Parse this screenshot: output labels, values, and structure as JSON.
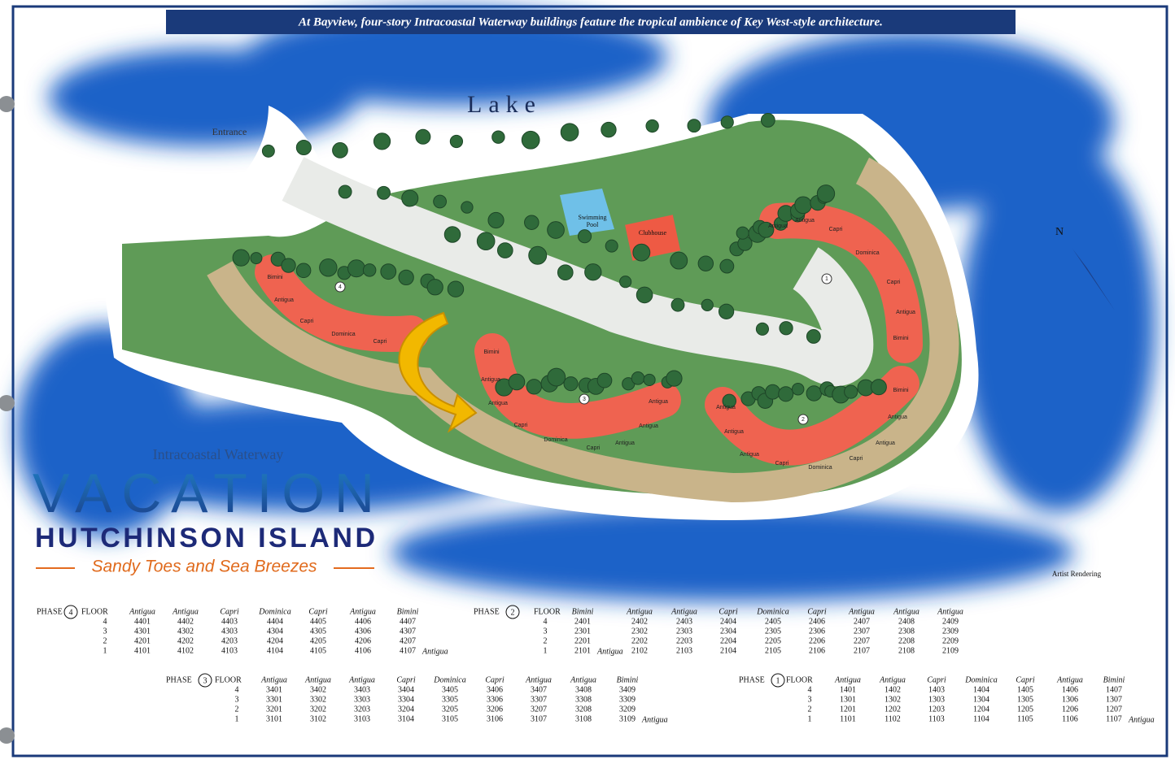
{
  "header": {
    "title": "At Bayview, four-story Intracoastal Waterway buildings feature the tropical ambience of Key West-style architecture."
  },
  "map": {
    "labels": [
      "Lake",
      "Entrance",
      "Swimming",
      "Pool",
      "Clubhouse",
      "N",
      "Artist Rendering"
    ],
    "buildings": [
      {
        "number": "4",
        "units": [
          "Bimini",
          "Antigua",
          "Capri",
          "Dominica",
          "Capri"
        ]
      },
      {
        "number": "3",
        "units": [
          "Bimini",
          "Antigua",
          "Antigua",
          "Capri",
          "Dominica",
          "Capri",
          "Antigua",
          "Antigua",
          "Antigua"
        ]
      },
      {
        "number": "2",
        "units": [
          "Antigua",
          "Antigua",
          "Antigua",
          "Capri",
          "Dominica",
          "Capri",
          "Antigua",
          "Antigua",
          "Bimini"
        ]
      },
      {
        "number": "1",
        "units": [
          "Antigua",
          "Antigua",
          "Capri",
          "Dominica",
          "Capri",
          "Antigua",
          "Bimini"
        ]
      }
    ]
  },
  "logo": {
    "top": "Intracoastal Waterway",
    "main": "VACATION",
    "sub": "HUTCHINSON ISLAND",
    "tagline": "Sandy Toes and Sea Breezes"
  },
  "phases": [
    {
      "phase": "PHASE",
      "number": "4",
      "floor": "FLOOR",
      "columns": [
        "Antigua",
        "Antigua",
        "Capri",
        "Dominica",
        "Capri",
        "Antigua",
        "Bimini"
      ],
      "rows": [
        {
          "floor": "4",
          "units": [
            "4401",
            "4402",
            "4403",
            "4404",
            "4405",
            "4406",
            "4407"
          ]
        },
        {
          "floor": "3",
          "units": [
            "4301",
            "4302",
            "4303",
            "4304",
            "4305",
            "4306",
            "4307"
          ]
        },
        {
          "floor": "2",
          "units": [
            "4201",
            "4202",
            "4203",
            "4204",
            "4205",
            "4206",
            "4207"
          ]
        },
        {
          "floor": "1",
          "units": [
            "4101",
            "4102",
            "4103",
            "4104",
            "4105",
            "4106",
            "4107"
          ],
          "note": "Antigua"
        }
      ]
    },
    {
      "phase": "PHASE",
      "number": "2",
      "floor": "FLOOR",
      "columns": [
        "Bimini",
        "Antigua",
        "Antigua",
        "Capri",
        "Dominica",
        "Capri",
        "Antigua",
        "Antigua",
        "Antigua"
      ],
      "rows": [
        {
          "floor": "4",
          "units": [
            "2401",
            "2402",
            "2403",
            "2404",
            "2405",
            "2406",
            "2407",
            "2408",
            "2409"
          ]
        },
        {
          "floor": "3",
          "units": [
            "2301",
            "2302",
            "2303",
            "2304",
            "2305",
            "2306",
            "2307",
            "2308",
            "2309"
          ]
        },
        {
          "floor": "2",
          "units": [
            "2201",
            "2202",
            "2203",
            "2204",
            "2205",
            "2206",
            "2207",
            "2208",
            "2209"
          ]
        },
        {
          "floor": "1",
          "units": [
            "2101",
            "2102",
            "2103",
            "2104",
            "2105",
            "2106",
            "2107",
            "2108",
            "2109"
          ],
          "note": "Antigua",
          "note_after": 0
        }
      ]
    },
    {
      "phase": "PHASE",
      "number": "3",
      "floor": "FLOOR",
      "columns": [
        "Antigua",
        "Antigua",
        "Antigua",
        "Capri",
        "Dominica",
        "Capri",
        "Antigua",
        "Antigua",
        "Bimini"
      ],
      "rows": [
        {
          "floor": "4",
          "units": [
            "3401",
            "3402",
            "3403",
            "3404",
            "3405",
            "3406",
            "3407",
            "3408",
            "3409"
          ]
        },
        {
          "floor": "3",
          "units": [
            "3301",
            "3302",
            "3303",
            "3304",
            "3305",
            "3306",
            "3307",
            "3308",
            "3309"
          ]
        },
        {
          "floor": "2",
          "units": [
            "3201",
            "3202",
            "3203",
            "3204",
            "3205",
            "3206",
            "3207",
            "3208",
            "3209"
          ]
        },
        {
          "floor": "1",
          "units": [
            "3101",
            "3102",
            "3103",
            "3104",
            "3105",
            "3106",
            "3107",
            "3108",
            "3109"
          ],
          "note": "Antigua"
        }
      ]
    },
    {
      "phase": "PHASE",
      "number": "1",
      "floor": "FLOOR",
      "columns": [
        "Antigua",
        "Antigua",
        "Capri",
        "Dominica",
        "Capri",
        "Antigua",
        "Bimini"
      ],
      "rows": [
        {
          "floor": "4",
          "units": [
            "1401",
            "1402",
            "1403",
            "1404",
            "1405",
            "1406",
            "1407"
          ]
        },
        {
          "floor": "3",
          "units": [
            "1301",
            "1302",
            "1303",
            "1304",
            "1305",
            "1306",
            "1307"
          ]
        },
        {
          "floor": "2",
          "units": [
            "1201",
            "1202",
            "1203",
            "1204",
            "1205",
            "1206",
            "1207"
          ]
        },
        {
          "floor": "1",
          "units": [
            "1101",
            "1102",
            "1103",
            "1104",
            "1105",
            "1106",
            "1107"
          ],
          "note": "Antigua"
        }
      ]
    }
  ]
}
